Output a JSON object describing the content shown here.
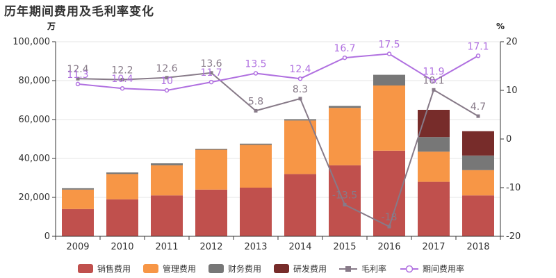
{
  "chart_data": {
    "type": "bar",
    "title": "历年期间费用及毛利率变化",
    "left_unit": "万",
    "right_unit": "%",
    "stacked": true,
    "categories": [
      "2009",
      "2010",
      "2011",
      "2012",
      "2013",
      "2014",
      "2015",
      "2016",
      "2017",
      "2018"
    ],
    "ylim": [
      0,
      100000
    ],
    "yticks": [
      0,
      20000,
      40000,
      60000,
      80000,
      100000
    ],
    "ytick_labels": [
      "0",
      "20,000",
      "40,000",
      "60,000",
      "80,000",
      "100,000"
    ],
    "y2lim": [
      -20,
      20
    ],
    "y2ticks": [
      -20,
      -10,
      0,
      10,
      20
    ],
    "y2tick_labels": [
      "-20",
      "-10",
      "0",
      "10",
      "20"
    ],
    "series": [
      {
        "name": "销售费用",
        "kind": "bar",
        "color": "#c0504d",
        "values": [
          14000,
          19000,
          21000,
          24000,
          25000,
          32000,
          36500,
          44000,
          28000,
          21000
        ]
      },
      {
        "name": "管理费用",
        "kind": "bar",
        "color": "#f79646",
        "values": [
          10000,
          13000,
          15500,
          20500,
          22000,
          27500,
          29500,
          33500,
          15500,
          13000
        ]
      },
      {
        "name": "财务费用",
        "kind": "bar",
        "color": "#777777",
        "values": [
          700,
          800,
          1000,
          500,
          600,
          700,
          1000,
          5500,
          7500,
          7500
        ]
      },
      {
        "name": "研发费用",
        "kind": "bar",
        "color": "#772c2a",
        "values": [
          0,
          0,
          0,
          0,
          0,
          0,
          0,
          0,
          14000,
          12500
        ]
      },
      {
        "name": "毛利率",
        "kind": "line",
        "axis": "right",
        "color": "#877a88",
        "marker": "square",
        "values": [
          12.4,
          12.2,
          12.6,
          13.6,
          5.8,
          8.3,
          -13.5,
          -18,
          10.1,
          4.7
        ],
        "labels": [
          "12.4",
          "12.2",
          "12.6",
          "13.6",
          "5.8",
          "8.3",
          "-13.5",
          "-18",
          "10.1",
          "4.7"
        ]
      },
      {
        "name": "期间费用率",
        "kind": "line",
        "axis": "right",
        "color": "#b070e0",
        "marker": "circle",
        "values": [
          11.3,
          10.4,
          10,
          11.7,
          13.5,
          12.4,
          16.7,
          17.5,
          11.9,
          17.1
        ],
        "labels": [
          "11.3",
          "10.4",
          "10",
          "11.7",
          "13.5",
          "12.4",
          "16.7",
          "17.5",
          "11.9",
          "17.1"
        ]
      }
    ],
    "legend_position": "bottom",
    "grid": {
      "horizontal": true,
      "vertical": false
    }
  }
}
